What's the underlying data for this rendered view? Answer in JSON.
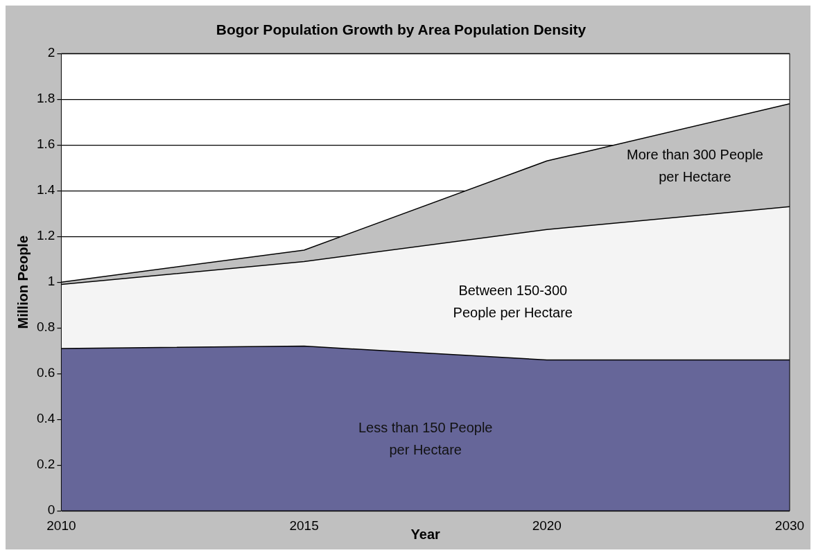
{
  "chart_data": {
    "type": "area",
    "title": "Bogor Population Growth by Area Population Density",
    "xlabel": "Year",
    "ylabel": "Million People",
    "categories": [
      "2010",
      "2015",
      "2020",
      "2030"
    ],
    "series": [
      {
        "name": "Less than 150 People per Hectare",
        "color": "#666699",
        "values": [
          0.71,
          0.72,
          0.66,
          0.66
        ]
      },
      {
        "name": "Between 150-300 People per Hectare",
        "color": "#f4f4f4",
        "values": [
          0.28,
          0.37,
          0.57,
          0.67
        ]
      },
      {
        "name": "More than 300 People per Hectare",
        "color": "#c0c0c0",
        "values": [
          0.01,
          0.05,
          0.3,
          0.45
        ]
      }
    ],
    "stacked": true,
    "ylim": [
      0,
      2
    ],
    "yticks": [
      0,
      0.2,
      0.4,
      0.6,
      0.8,
      1,
      1.2,
      1.4,
      1.6,
      1.8,
      2
    ],
    "grid": "y",
    "legend": false
  }
}
